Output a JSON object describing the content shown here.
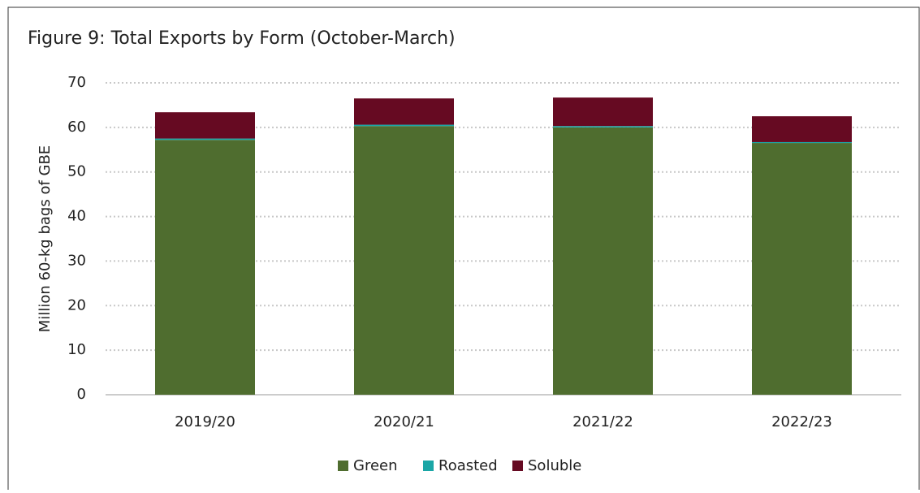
{
  "chart_data": {
    "type": "stacked_bar",
    "title": "Figure 9: Total Exports by Form (October-March)",
    "y_label": "Million 60-kg bags of GBE",
    "categories": [
      "2019/20",
      "2020/21",
      "2021/22",
      "2022/23"
    ],
    "series": [
      {
        "name": "Green",
        "color": "#4f6d2f",
        "values": [
          57.2,
          60.3,
          60.0,
          56.5
        ]
      },
      {
        "name": "Roasted",
        "color": "#1aa6a6",
        "values": [
          0.3,
          0.3,
          0.3,
          0.2
        ]
      },
      {
        "name": "Soluble",
        "color": "#660a22",
        "values": [
          5.9,
          5.9,
          6.4,
          5.8
        ]
      }
    ],
    "ylim": [
      0,
      70
    ],
    "yticks": [
      0,
      10,
      20,
      30,
      40,
      50,
      60,
      70
    ],
    "grid": true,
    "legend": "bottom"
  }
}
